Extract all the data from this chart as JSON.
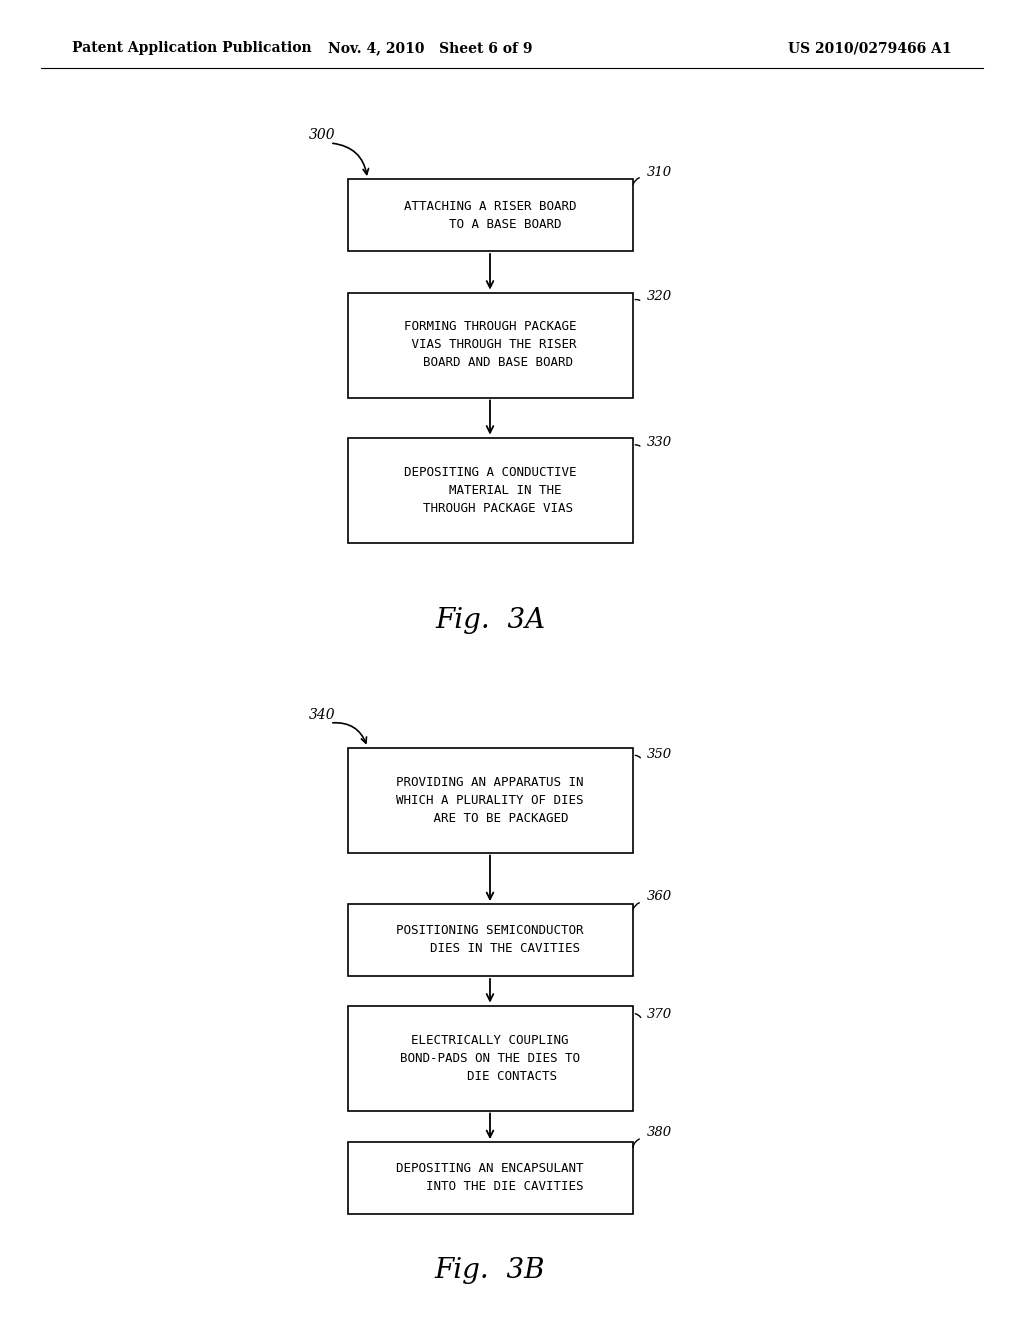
{
  "bg_color": "#ffffff",
  "header_left": "Patent Application Publication",
  "header_mid": "Nov. 4, 2010   Sheet 6 of 9",
  "header_right": "US 2010/0279466 A1",
  "fig3a_label": "Fig.  3A",
  "fig3b_label": "Fig.  3B",
  "box_a310_text": "ATTACHING A RISER BOARD\n    TO A BASE BOARD",
  "box_a320_text": "FORMING THROUGH PACKAGE\n VIAS THROUGH THE RISER\n  BOARD AND BASE BOARD",
  "box_a330_text": "DEPOSITING A CONDUCTIVE\n    MATERIAL IN THE\n  THROUGH PACKAGE VIAS",
  "box_b350_text": "PROVIDING AN APPARATUS IN\nWHICH A PLURALITY OF DIES\n   ARE TO BE PACKAGED",
  "box_b360_text": "POSITIONING SEMICONDUCTOR\n    DIES IN THE CAVITIES",
  "box_b370_text": "ELECTRICALLY COUPLING\nBOND-PADS ON THE DIES TO\n      DIE CONTACTS",
  "box_b380_text": "DEPOSITING AN ENCAPSULANT\n    INTO THE DIE CAVITIES"
}
